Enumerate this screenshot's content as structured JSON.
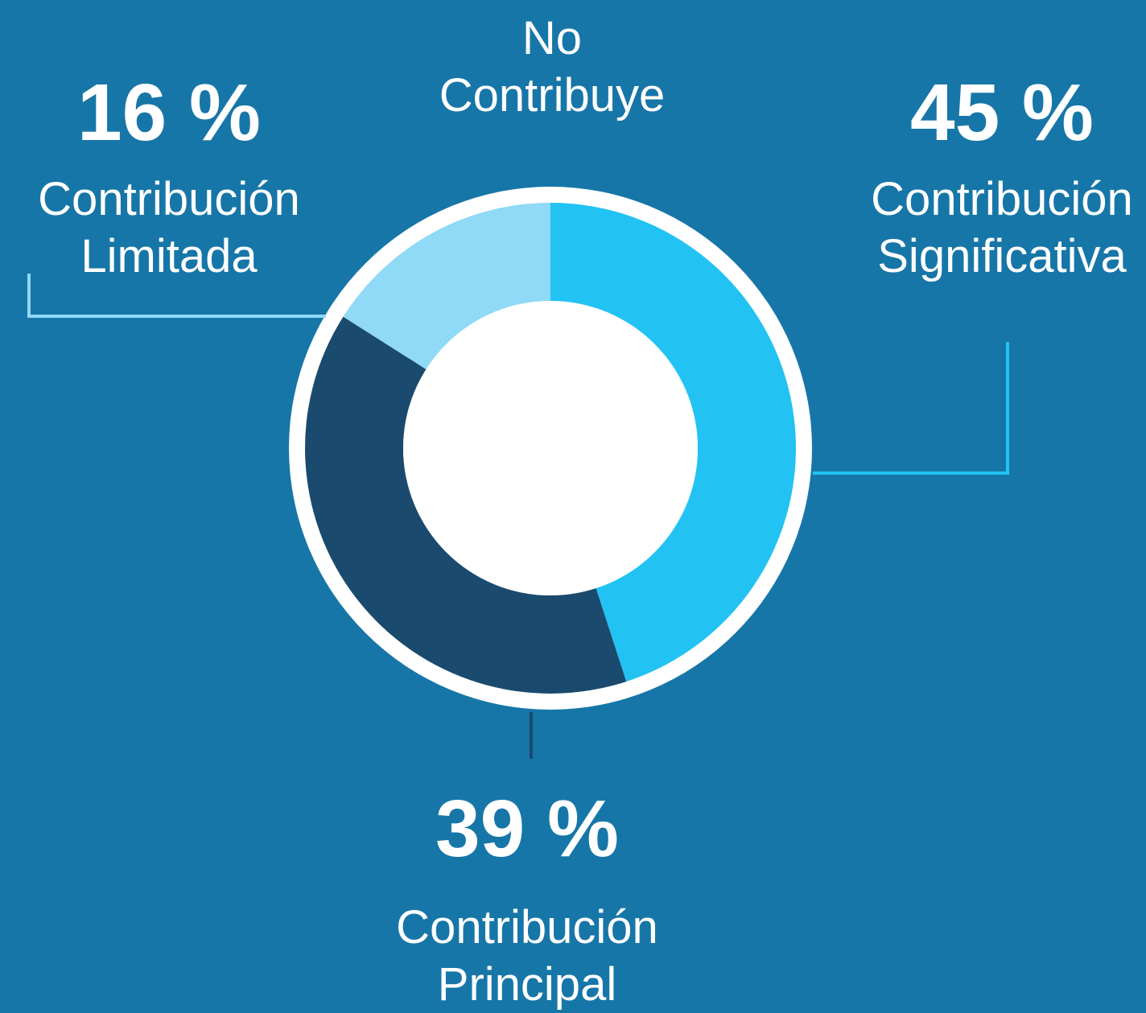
{
  "chart_data": {
    "type": "donut",
    "categories": [
      "No Contribuye",
      "Contribución Significativa",
      "Contribución Principal",
      "Contribución Limitada"
    ],
    "values": [
      0,
      45,
      39,
      16
    ],
    "value_labels": [
      null,
      "45 %",
      "39 %",
      "16 %"
    ],
    "colors": [
      "#1e2a36",
      "#22c3f3",
      "#1a4a6e",
      "#90d9f7"
    ]
  }
}
